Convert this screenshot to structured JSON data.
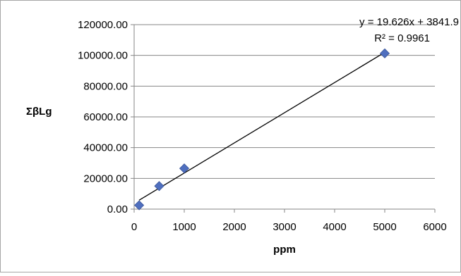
{
  "chart_data": {
    "type": "scatter",
    "title": "",
    "xlabel": "ppm",
    "ylabel": "ΣβLg",
    "xlim": [
      0,
      6000
    ],
    "ylim": [
      0,
      120000
    ],
    "x_ticks": [
      0,
      1000,
      2000,
      3000,
      4000,
      5000,
      6000
    ],
    "x_tick_labels": [
      "0",
      "1000",
      "2000",
      "3000",
      "4000",
      "5000",
      "6000"
    ],
    "y_ticks": [
      0,
      20000,
      40000,
      60000,
      80000,
      100000,
      120000
    ],
    "y_tick_labels": [
      "0.00",
      "20000.00",
      "40000.00",
      "60000.00",
      "80000.00",
      "100000.00",
      "120000.00"
    ],
    "grid": "horizontal",
    "legend": "none",
    "series": [
      {
        "marker": "diamond",
        "color": "#4f6fbf",
        "x": [
          100,
          500,
          1000,
          5000
        ],
        "y": [
          2500,
          15000,
          26500,
          101300
        ]
      }
    ],
    "trendline": {
      "type": "linear",
      "slope": 19.626,
      "intercept": 3841.9,
      "x_range": [
        100,
        5000
      ],
      "equation": "y = 19.626x + 3841.9",
      "r_squared_label": "R² = 0.9961",
      "color": "#000000"
    }
  }
}
